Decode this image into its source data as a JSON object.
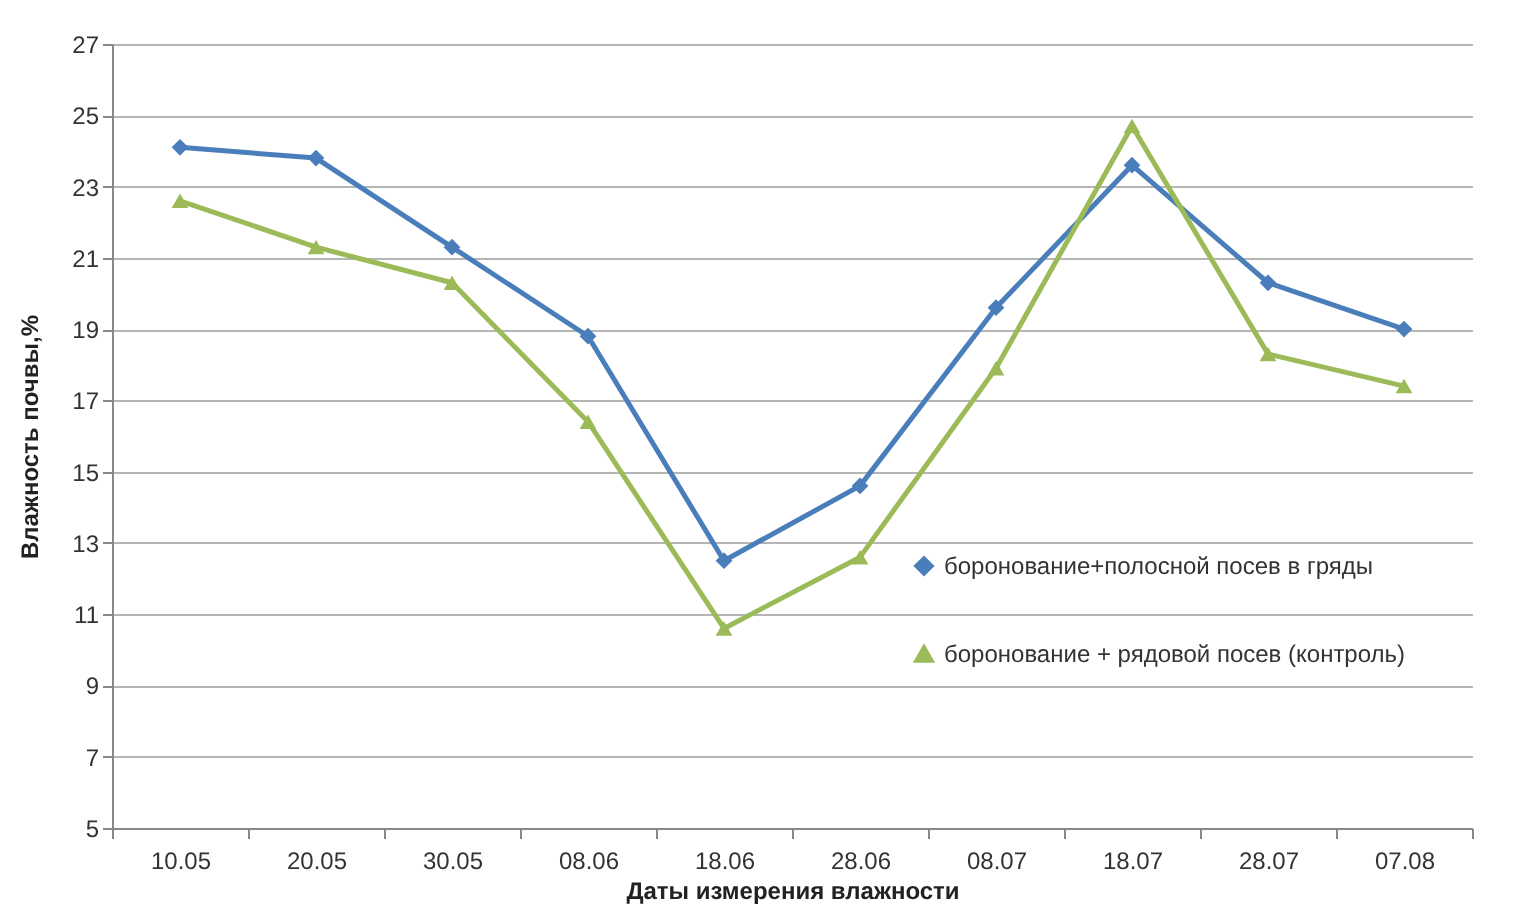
{
  "chart_data": {
    "type": "line",
    "xlabel": "Даты измерения влажности",
    "ylabel": "Влажность почвы,%",
    "categories": [
      "10.05",
      "20.05",
      "30.05",
      "08.06",
      "18.06",
      "28.06",
      "08.07",
      "18.07",
      "28.07",
      "07.08"
    ],
    "series": [
      {
        "name": "боронование+полосной посев в гряды",
        "color": "#4a7ebb",
        "marker": "diamond",
        "values": [
          24.1,
          23.8,
          21.3,
          18.8,
          12.5,
          14.6,
          19.6,
          23.6,
          20.3,
          19.0
        ]
      },
      {
        "name": "боронование + рядовой посев (контроль)",
        "color": "#9bbb59",
        "marker": "triangle",
        "values": [
          22.6,
          21.3,
          20.3,
          16.4,
          10.6,
          12.6,
          17.9,
          24.7,
          18.3,
          17.4
        ]
      }
    ],
    "ylim": [
      5,
      27
    ],
    "yticks": [
      5,
      7,
      9,
      11,
      13,
      15,
      17,
      19,
      21,
      23,
      25,
      27
    ],
    "grid": "y",
    "legend": "right"
  }
}
